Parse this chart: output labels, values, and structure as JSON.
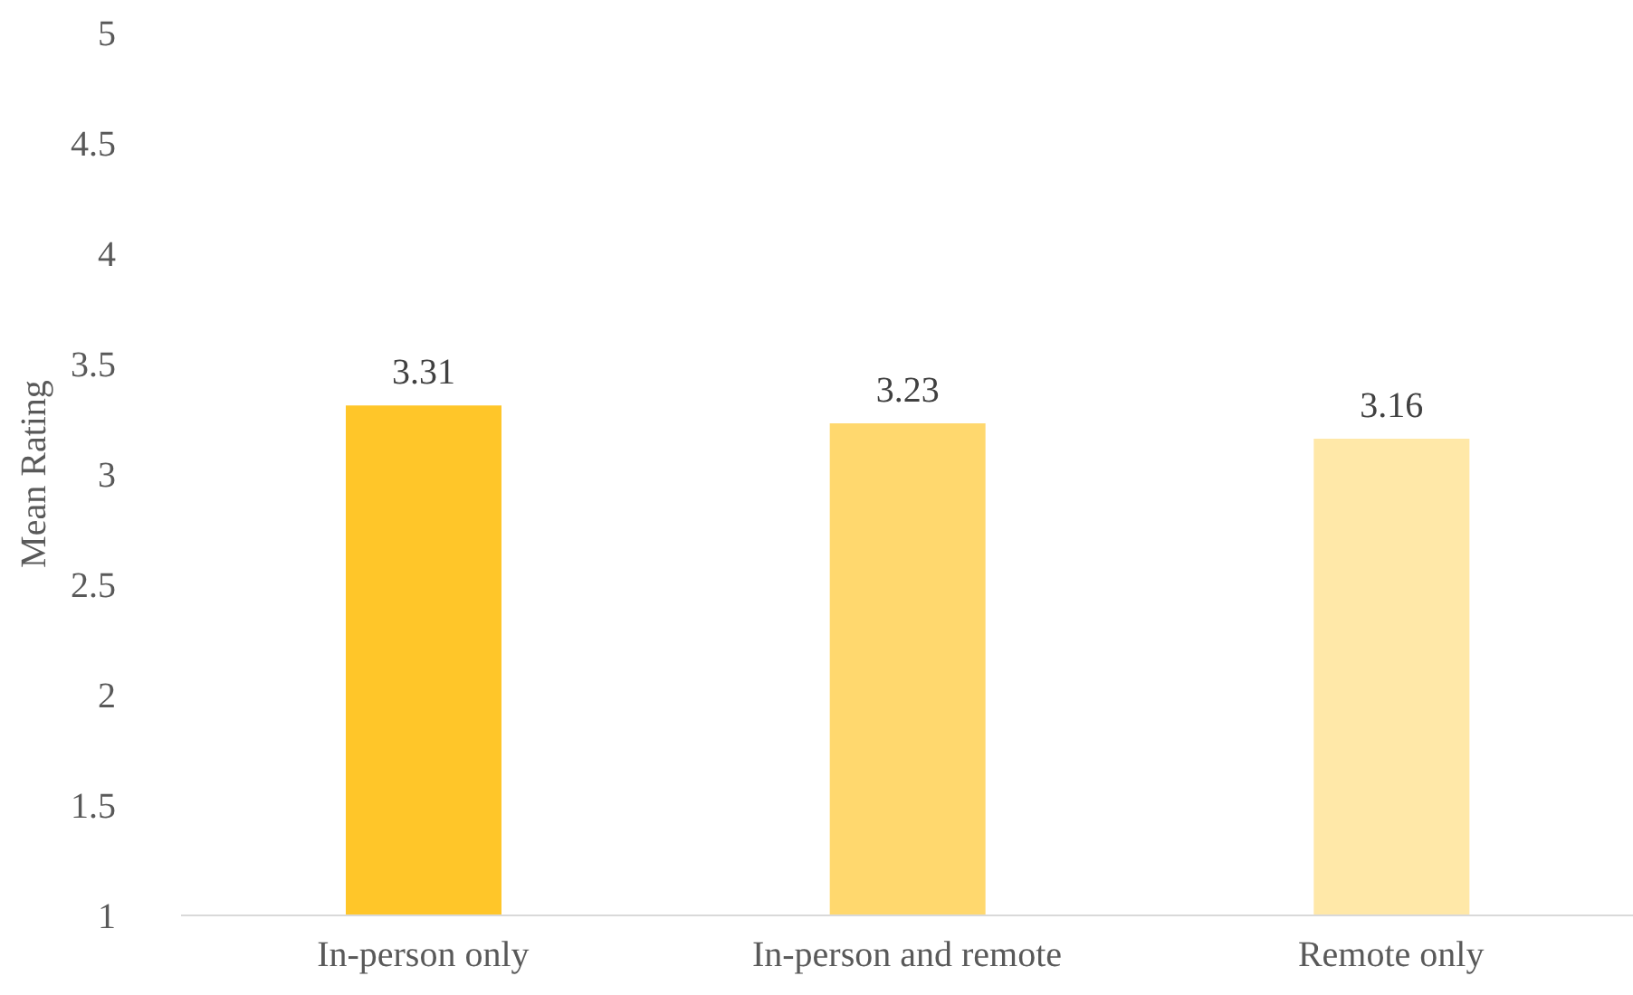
{
  "chart_data": {
    "type": "bar",
    "ylabel": "Mean Rating",
    "categories": [
      "In-person only",
      "In-person and remote",
      "Remote only"
    ],
    "values": [
      3.31,
      3.23,
      3.16
    ],
    "colors": [
      "#ffc629",
      "#ffd86e",
      "#ffe8a8"
    ],
    "ylim": [
      1,
      5
    ],
    "yticks": [
      1,
      1.5,
      2,
      2.5,
      3,
      3.5,
      4,
      4.5,
      5
    ],
    "grid": false,
    "data_labels": true
  }
}
